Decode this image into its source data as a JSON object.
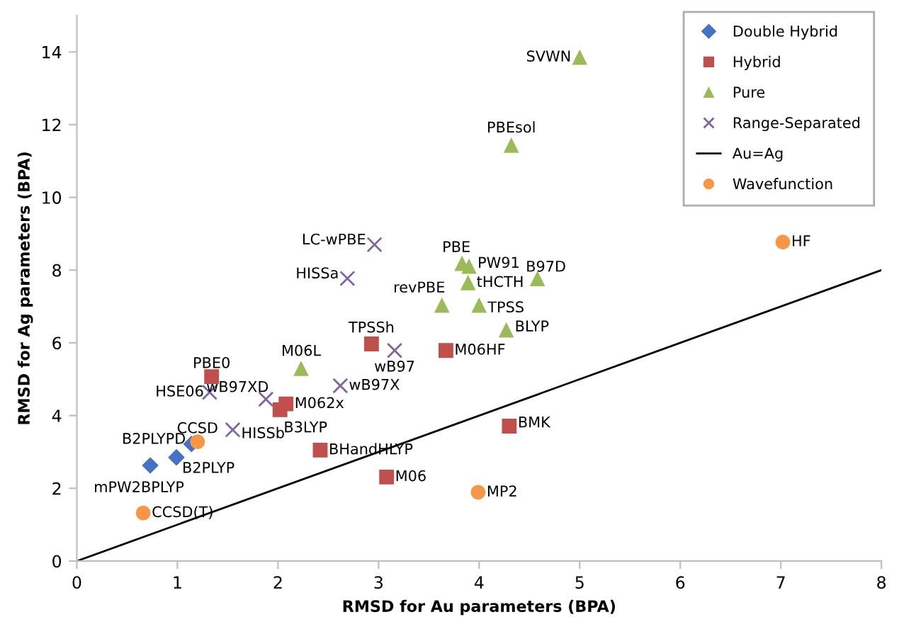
{
  "chart_data": {
    "type": "scatter",
    "xlabel": "RMSD for Au parameters (BPA)",
    "ylabel": "RMSD for Ag parameters (BPA)",
    "xlim": [
      0,
      8
    ],
    "ylim": [
      0,
      15
    ],
    "xticks": [
      0,
      1,
      2,
      3,
      4,
      5,
      6,
      7,
      8
    ],
    "yticks": [
      0,
      2,
      4,
      6,
      8,
      10,
      12,
      14
    ],
    "grid": false,
    "legend": "top right",
    "series": [
      {
        "name": "Double Hybrid",
        "color": "#4472c4",
        "marker": "diamond",
        "x": [
          0.73,
          0.99,
          1.14
        ],
        "values": [
          2.63,
          2.85,
          3.22
        ]
      },
      {
        "name": "Hybrid",
        "color": "#c0504d",
        "marker": "square",
        "x": [
          1.34,
          2.08,
          2.02,
          2.42,
          3.08,
          2.93,
          3.67,
          4.3
        ],
        "values": [
          5.07,
          4.32,
          4.16,
          3.05,
          2.31,
          5.97,
          5.79,
          3.71
        ]
      },
      {
        "name": "Pure",
        "color": "#9bbb59",
        "marker": "triangle",
        "x": [
          2.23,
          5.0,
          4.32,
          3.83,
          3.9,
          4.58,
          3.89,
          3.63,
          4.0,
          4.27
        ],
        "values": [
          5.29,
          13.85,
          11.43,
          8.18,
          8.1,
          7.76,
          7.65,
          7.03,
          7.03,
          6.35
        ]
      },
      {
        "name": "Range-Separated",
        "color": "#8064a2",
        "marker": "cross",
        "x": [
          2.96,
          2.69,
          3.16,
          2.62,
          1.88,
          1.32,
          1.55
        ],
        "values": [
          8.7,
          7.77,
          5.79,
          4.82,
          4.45,
          4.64,
          3.61
        ]
      },
      {
        "name": "Au=Ag",
        "type": "line",
        "color": "#000000",
        "marker": "none",
        "x": [
          0,
          8
        ],
        "values": [
          0,
          8
        ]
      },
      {
        "name": "Wavefunction",
        "color": "#f79646",
        "marker": "circle",
        "x": [
          1.2,
          0.66,
          7.02,
          3.99
        ],
        "values": [
          3.28,
          1.32,
          8.77,
          1.89
        ]
      }
    ],
    "annotations": [
      {
        "text": "mPW2BPLYP",
        "x": 0.73,
        "y": 2.63
      },
      {
        "text": "B2PLYP",
        "x": 0.99,
        "y": 2.85
      },
      {
        "text": "B2PLYPD",
        "x": 1.14,
        "y": 3.22
      },
      {
        "text": "PBE0",
        "x": 1.34,
        "y": 5.07
      },
      {
        "text": "M062x",
        "x": 2.08,
        "y": 4.32
      },
      {
        "text": "B3LYP",
        "x": 2.02,
        "y": 4.16
      },
      {
        "text": "BHandHLYP",
        "x": 2.42,
        "y": 3.05
      },
      {
        "text": "M06",
        "x": 3.08,
        "y": 2.31
      },
      {
        "text": "TPSSh",
        "x": 2.93,
        "y": 5.97
      },
      {
        "text": "M06HF",
        "x": 3.67,
        "y": 5.79
      },
      {
        "text": "BMK",
        "x": 4.3,
        "y": 3.71
      },
      {
        "text": "M06L",
        "x": 2.23,
        "y": 5.29
      },
      {
        "text": "SVWN",
        "x": 5.0,
        "y": 13.85
      },
      {
        "text": "PBEsol",
        "x": 4.32,
        "y": 11.43
      },
      {
        "text": "PBE",
        "x": 3.83,
        "y": 8.18
      },
      {
        "text": "PW91",
        "x": 3.9,
        "y": 8.1
      },
      {
        "text": "B97D",
        "x": 4.58,
        "y": 7.76
      },
      {
        "text": "tHCTH",
        "x": 3.89,
        "y": 7.65
      },
      {
        "text": "revPBE",
        "x": 3.63,
        "y": 7.03
      },
      {
        "text": "TPSS",
        "x": 4.0,
        "y": 7.03
      },
      {
        "text": "BLYP",
        "x": 4.27,
        "y": 6.35
      },
      {
        "text": "LC-wPBE",
        "x": 2.96,
        "y": 8.7
      },
      {
        "text": "HISSa",
        "x": 2.69,
        "y": 7.77
      },
      {
        "text": "wB97",
        "x": 3.16,
        "y": 5.79
      },
      {
        "text": "wB97X",
        "x": 2.62,
        "y": 4.82
      },
      {
        "text": "wB97XD",
        "x": 1.88,
        "y": 4.45
      },
      {
        "text": "HSE06",
        "x": 1.32,
        "y": 4.64
      },
      {
        "text": "HISSb",
        "x": 1.55,
        "y": 3.61
      },
      {
        "text": "CCSD",
        "x": 1.2,
        "y": 3.28
      },
      {
        "text": "CCSD(T)",
        "x": 0.66,
        "y": 1.32
      },
      {
        "text": "HF",
        "x": 7.02,
        "y": 8.77
      },
      {
        "text": "MP2",
        "x": 3.99,
        "y": 1.89
      }
    ]
  }
}
